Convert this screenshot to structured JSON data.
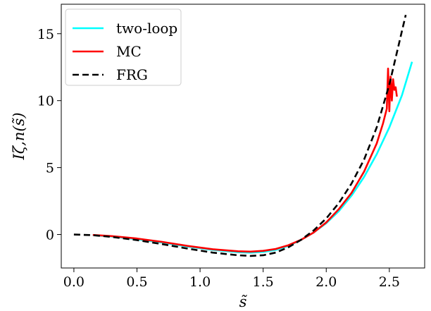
{
  "chart_data": {
    "type": "line",
    "title": "",
    "xlabel": "s̃",
    "ylabel": "Iζ,n(s̃)",
    "xlim": [
      -0.1,
      2.78
    ],
    "ylim": [
      -2.5,
      17.2
    ],
    "xticks": [
      0.0,
      0.5,
      1.0,
      1.5,
      2.0,
      2.5
    ],
    "xtick_labels": [
      "0.0",
      "0.5",
      "1.0",
      "1.5",
      "2.0",
      "2.5"
    ],
    "yticks": [
      0,
      5,
      10,
      15
    ],
    "ytick_labels": [
      "0",
      "5",
      "10",
      "15"
    ],
    "grid": false,
    "legend_position": "top-left",
    "series": [
      {
        "name": "two-loop",
        "color": "#00ffff",
        "style": "solid",
        "x": [
          0.15,
          0.3,
          0.5,
          0.7,
          0.9,
          1.1,
          1.3,
          1.4,
          1.5,
          1.6,
          1.7,
          1.8,
          1.9,
          2.0,
          2.1,
          2.2,
          2.3,
          2.4,
          2.5,
          2.6,
          2.68
        ],
        "y": [
          -0.05,
          -0.15,
          -0.35,
          -0.6,
          -0.9,
          -1.15,
          -1.32,
          -1.35,
          -1.3,
          -1.15,
          -0.85,
          -0.4,
          0.15,
          0.85,
          1.75,
          2.9,
          4.3,
          6.0,
          8.0,
          10.4,
          12.9
        ]
      },
      {
        "name": "MC",
        "color": "#ff0000",
        "style": "solid",
        "x": [
          0.15,
          0.3,
          0.5,
          0.7,
          0.9,
          1.1,
          1.3,
          1.4,
          1.5,
          1.6,
          1.7,
          1.8,
          1.9,
          2.0,
          2.1,
          2.2,
          2.3,
          2.4,
          2.45,
          2.48,
          2.49,
          2.5,
          2.51,
          2.52,
          2.53,
          2.54,
          2.55,
          2.56
        ],
        "y": [
          -0.03,
          -0.12,
          -0.3,
          -0.55,
          -0.85,
          -1.1,
          -1.25,
          -1.28,
          -1.22,
          -1.08,
          -0.8,
          -0.4,
          0.15,
          0.9,
          1.9,
          3.1,
          4.7,
          6.8,
          8.3,
          9.4,
          12.4,
          9.2,
          11.8,
          10.0,
          11.6,
          10.8,
          11.0,
          10.3
        ]
      },
      {
        "name": "FRG",
        "color": "#000000",
        "style": "dashed",
        "x": [
          0.0,
          0.15,
          0.3,
          0.5,
          0.7,
          0.9,
          1.1,
          1.3,
          1.4,
          1.5,
          1.6,
          1.7,
          1.8,
          1.9,
          2.0,
          2.1,
          2.2,
          2.3,
          2.4,
          2.5,
          2.6,
          2.63
        ],
        "y": [
          0.0,
          -0.05,
          -0.18,
          -0.42,
          -0.72,
          -1.05,
          -1.35,
          -1.55,
          -1.6,
          -1.55,
          -1.35,
          -0.95,
          -0.4,
          0.3,
          1.2,
          2.35,
          3.8,
          5.6,
          8.0,
          11.2,
          15.2,
          16.4
        ]
      }
    ]
  }
}
